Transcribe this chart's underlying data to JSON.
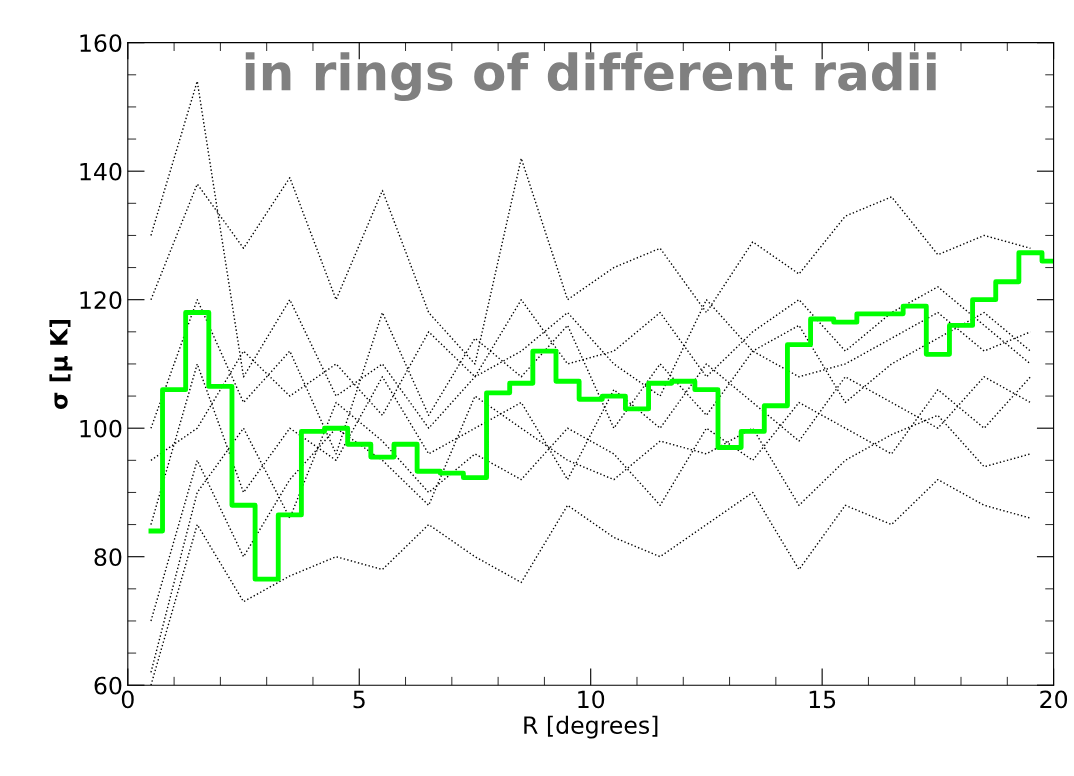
{
  "chart_data": {
    "type": "line",
    "title": "in rings of different radii",
    "xlabel": "R [degrees]",
    "ylabel": "σ [μ K]",
    "xlim": [
      0,
      20
    ],
    "ylim": [
      60,
      160
    ],
    "xticks": [
      0,
      5,
      10,
      15,
      20
    ],
    "yticks": [
      60,
      80,
      100,
      120,
      140,
      160
    ],
    "grid": false,
    "legend": false,
    "series": [
      {
        "color": "#000000",
        "line_style": "dotted",
        "x": [
          0.5,
          1.5,
          2.5,
          3.5,
          4.5,
          5.5,
          6.5,
          7.5,
          8.5,
          9.5,
          10.5,
          11.5,
          12.5,
          13.5,
          14.5,
          15.5,
          16.5,
          17.5,
          18.5,
          19.5
        ],
        "values": [
          130,
          154,
          108,
          120,
          105,
          110,
          100,
          108,
          112,
          118,
          110,
          105,
          120,
          112,
          108,
          110,
          114,
          118,
          112,
          115
        ]
      },
      {
        "color": "#000000",
        "line_style": "dotted",
        "x": [
          0.5,
          1.5,
          2.5,
          3.5,
          4.5,
          5.5,
          6.5,
          7.5,
          8.5,
          9.5,
          10.5,
          11.5,
          12.5,
          13.5,
          14.5,
          15.5,
          16.5,
          17.5,
          18.5,
          19.5
        ],
        "values": [
          120,
          138,
          128,
          139,
          120,
          137,
          118,
          110,
          142,
          120,
          125,
          128,
          118,
          129,
          124,
          133,
          136,
          127,
          130,
          128
        ]
      },
      {
        "color": "#000000",
        "line_style": "dotted",
        "x": [
          0.5,
          1.5,
          2.5,
          3.5,
          4.5,
          5.5,
          6.5,
          7.5,
          8.5,
          9.5,
          10.5,
          11.5,
          12.5,
          13.5,
          14.5,
          15.5,
          16.5,
          17.5,
          18.5,
          19.5
        ],
        "values": [
          60,
          85,
          73,
          77,
          80,
          78,
          85,
          80,
          76,
          88,
          83,
          80,
          85,
          90,
          78,
          88,
          85,
          92,
          88,
          86
        ]
      },
      {
        "color": "#000000",
        "line_style": "dotted",
        "x": [
          0.5,
          1.5,
          2.5,
          3.5,
          4.5,
          5.5,
          6.5,
          7.5,
          8.5,
          9.5,
          10.5,
          11.5,
          12.5,
          13.5,
          14.5,
          15.5,
          16.5,
          17.5,
          18.5,
          19.5
        ],
        "values": [
          70,
          95,
          80,
          92,
          100,
          95,
          88,
          105,
          100,
          95,
          92,
          98,
          96,
          100,
          88,
          95,
          99,
          102,
          94,
          96
        ]
      },
      {
        "color": "#000000",
        "line_style": "dotted",
        "x": [
          0.5,
          1.5,
          2.5,
          3.5,
          4.5,
          5.5,
          6.5,
          7.5,
          8.5,
          9.5,
          10.5,
          11.5,
          12.5,
          13.5,
          14.5,
          15.5,
          16.5,
          17.5,
          18.5,
          19.5
        ],
        "values": [
          95,
          100,
          112,
          105,
          110,
          102,
          115,
          108,
          120,
          110,
          112,
          118,
          108,
          115,
          120,
          112,
          118,
          122,
          116,
          110
        ]
      },
      {
        "color": "#000000",
        "line_style": "dotted",
        "x": [
          0.5,
          1.5,
          2.5,
          3.5,
          4.5,
          5.5,
          6.5,
          7.5,
          8.5,
          9.5,
          10.5,
          11.5,
          12.5,
          13.5,
          14.5,
          15.5,
          16.5,
          17.5,
          18.5,
          19.5
        ],
        "values": [
          85,
          110,
          90,
          100,
          95,
          108,
          96,
          100,
          104,
          92,
          106,
          100,
          110,
          104,
          98,
          108,
          104,
          100,
          108,
          104
        ]
      },
      {
        "color": "#000000",
        "line_style": "dotted",
        "x": [
          0.5,
          1.5,
          2.5,
          3.5,
          4.5,
          5.5,
          6.5,
          7.5,
          8.5,
          9.5,
          10.5,
          11.5,
          12.5,
          13.5,
          14.5,
          15.5,
          16.5,
          17.5,
          18.5,
          19.5
        ],
        "values": [
          100,
          120,
          104,
          112,
          96,
          118,
          102,
          114,
          108,
          116,
          100,
          110,
          102,
          112,
          116,
          104,
          110,
          114,
          118,
          112
        ]
      },
      {
        "color": "#000000",
        "line_style": "dotted",
        "x": [
          0.5,
          1.5,
          2.5,
          3.5,
          4.5,
          5.5,
          6.5,
          7.5,
          8.5,
          9.5,
          10.5,
          11.5,
          12.5,
          13.5,
          14.5,
          15.5,
          16.5,
          17.5,
          18.5,
          19.5
        ],
        "values": [
          62,
          90,
          100,
          86,
          104,
          98,
          90,
          96,
          92,
          100,
          96,
          88,
          100,
          95,
          104,
          100,
          96,
          106,
          100,
          108
        ]
      },
      {
        "type": "step",
        "color": "#00ff00",
        "line_style": "solid",
        "x": [
          0.5,
          1,
          1.5,
          2,
          2.5,
          3,
          3.5,
          4,
          4.5,
          5,
          5.5,
          6,
          6.5,
          7,
          7.5,
          8,
          8.5,
          9,
          9.5,
          10,
          10.5,
          11,
          11.5,
          12,
          12.5,
          13,
          13.5,
          14,
          14.5,
          15,
          15.5,
          16,
          16.5,
          17,
          17.5,
          18,
          18.5,
          19,
          19.5,
          20
        ],
        "values": [
          84,
          106,
          118,
          106.5,
          88,
          76.5,
          86.5,
          99.5,
          100,
          97.5,
          95.5,
          97.5,
          93.3,
          93,
          92.3,
          105.5,
          107,
          112,
          107.3,
          104.5,
          105,
          103,
          107,
          107.3,
          106,
          97,
          99.5,
          103.5,
          113,
          117,
          116.5,
          117.8,
          117.8,
          119,
          111.5,
          116,
          120,
          122.8,
          127.3,
          126
        ]
      }
    ]
  }
}
